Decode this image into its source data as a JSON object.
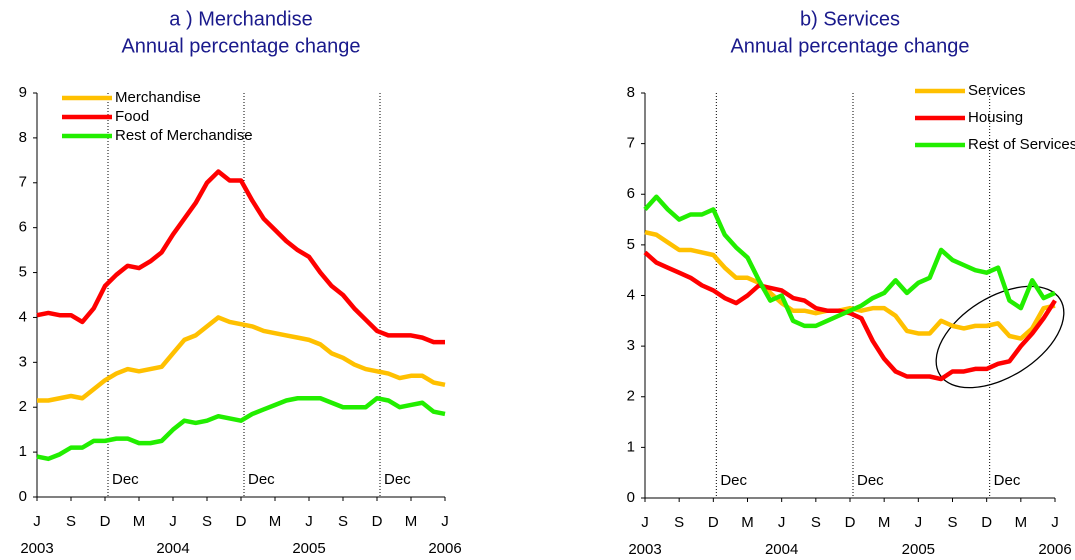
{
  "chart_data": [
    {
      "type": "line",
      "title": "a ) Merchandise",
      "subtitle": "Annual percentage change",
      "categories": [
        "J",
        null,
        null,
        "S",
        null,
        null,
        "D",
        null,
        null,
        "M",
        null,
        null,
        "J",
        null,
        null,
        "S",
        null,
        null,
        "D",
        null,
        null,
        "M",
        null,
        null,
        "J",
        null,
        null,
        "S",
        null,
        null,
        "D",
        null,
        null,
        "M",
        null,
        null,
        "J"
      ],
      "x_group_labels": [
        "2003",
        "2004",
        "2005",
        "2006"
      ],
      "annotations": [
        {
          "text": "Dec",
          "x": 6
        },
        {
          "text": "Dec",
          "x": 18
        },
        {
          "text": "Dec",
          "x": 30
        }
      ],
      "ylim": [
        0,
        9
      ],
      "yticks": [
        0,
        1,
        2,
        3,
        4,
        5,
        6,
        7,
        8,
        9
      ],
      "legend": "upper left",
      "series": [
        {
          "name": "Merchandise",
          "color": "#ffc000",
          "values": [
            2.15,
            2.15,
            2.2,
            2.25,
            2.2,
            2.4,
            2.6,
            2.75,
            2.85,
            2.8,
            2.85,
            2.9,
            3.2,
            3.5,
            3.6,
            3.8,
            4.0,
            3.9,
            3.85,
            3.8,
            3.7,
            3.65,
            3.6,
            3.55,
            3.5,
            3.4,
            3.2,
            3.1,
            2.95,
            2.85,
            2.8,
            2.75,
            2.65,
            2.7,
            2.7,
            2.55,
            2.5
          ]
        },
        {
          "name": "Food",
          "color": "#ff0000",
          "values": [
            4.05,
            4.1,
            4.05,
            4.05,
            3.9,
            4.2,
            4.7,
            4.95,
            5.15,
            5.1,
            5.25,
            5.45,
            5.85,
            6.2,
            6.55,
            7.0,
            7.25,
            7.05,
            7.05,
            6.6,
            6.2,
            5.95,
            5.7,
            5.5,
            5.35,
            5.0,
            4.7,
            4.5,
            4.2,
            3.95,
            3.7,
            3.6,
            3.6,
            3.6,
            3.55,
            3.45,
            3.45
          ]
        },
        {
          "name": "Rest of Merchandise",
          "color": "#22ee00",
          "values": [
            0.9,
            0.85,
            0.95,
            1.1,
            1.1,
            1.25,
            1.25,
            1.3,
            1.3,
            1.2,
            1.2,
            1.25,
            1.5,
            1.7,
            1.65,
            1.7,
            1.8,
            1.75,
            1.7,
            1.85,
            1.95,
            2.05,
            2.15,
            2.2,
            2.2,
            2.2,
            2.1,
            2.0,
            2.0,
            2.0,
            2.2,
            2.15,
            2.0,
            2.05,
            2.1,
            1.9,
            1.85
          ]
        }
      ]
    },
    {
      "type": "line",
      "title": "b) Services",
      "subtitle": "Annual percentage change",
      "categories": [
        "J",
        null,
        null,
        "S",
        null,
        null,
        "D",
        null,
        null,
        "M",
        null,
        null,
        "J",
        null,
        null,
        "S",
        null,
        null,
        "D",
        null,
        null,
        "M",
        null,
        null,
        "J",
        null,
        null,
        "S",
        null,
        null,
        "D",
        null,
        null,
        "M",
        null,
        null,
        "J"
      ],
      "x_group_labels": [
        "2003",
        "2004",
        "2005",
        "2006"
      ],
      "annotations": [
        {
          "text": "Dec",
          "x": 6
        },
        {
          "text": "Dec",
          "x": 18
        },
        {
          "text": "Dec",
          "x": 30
        }
      ],
      "ylim": [
        0,
        8
      ],
      "yticks": [
        0,
        1,
        2,
        3,
        4,
        5,
        6,
        7,
        8
      ],
      "legend": "upper right",
      "series": [
        {
          "name": "Services",
          "color": "#ffc000",
          "values": [
            5.25,
            5.2,
            5.05,
            4.9,
            4.9,
            4.85,
            4.8,
            4.55,
            4.35,
            4.35,
            4.25,
            4.05,
            3.85,
            3.7,
            3.7,
            3.65,
            3.7,
            3.7,
            3.75,
            3.7,
            3.75,
            3.75,
            3.6,
            3.3,
            3.25,
            3.25,
            3.5,
            3.4,
            3.35,
            3.4,
            3.4,
            3.45,
            3.2,
            3.15,
            3.35,
            3.75,
            3.8
          ]
        },
        {
          "name": "Housing",
          "color": "#ff0000",
          "values": [
            4.85,
            4.65,
            4.55,
            4.45,
            4.35,
            4.2,
            4.1,
            3.95,
            3.85,
            4.0,
            4.2,
            4.15,
            4.1,
            3.95,
            3.9,
            3.75,
            3.7,
            3.7,
            3.65,
            3.55,
            3.1,
            2.75,
            2.5,
            2.4,
            2.4,
            2.4,
            2.35,
            2.5,
            2.5,
            2.55,
            2.55,
            2.65,
            2.7,
            3.0,
            3.25,
            3.55,
            3.9
          ]
        },
        {
          "name": "Rest of Services",
          "color": "#22ee00",
          "values": [
            5.7,
            5.95,
            5.7,
            5.5,
            5.6,
            5.6,
            5.7,
            5.2,
            4.95,
            4.75,
            4.3,
            3.9,
            4.0,
            3.5,
            3.4,
            3.4,
            3.5,
            3.6,
            3.7,
            3.8,
            3.95,
            4.05,
            4.3,
            4.05,
            4.25,
            4.35,
            4.9,
            4.7,
            4.6,
            4.5,
            4.45,
            4.55,
            3.9,
            3.75,
            4.3,
            3.95,
            4.05
          ]
        }
      ]
    }
  ]
}
